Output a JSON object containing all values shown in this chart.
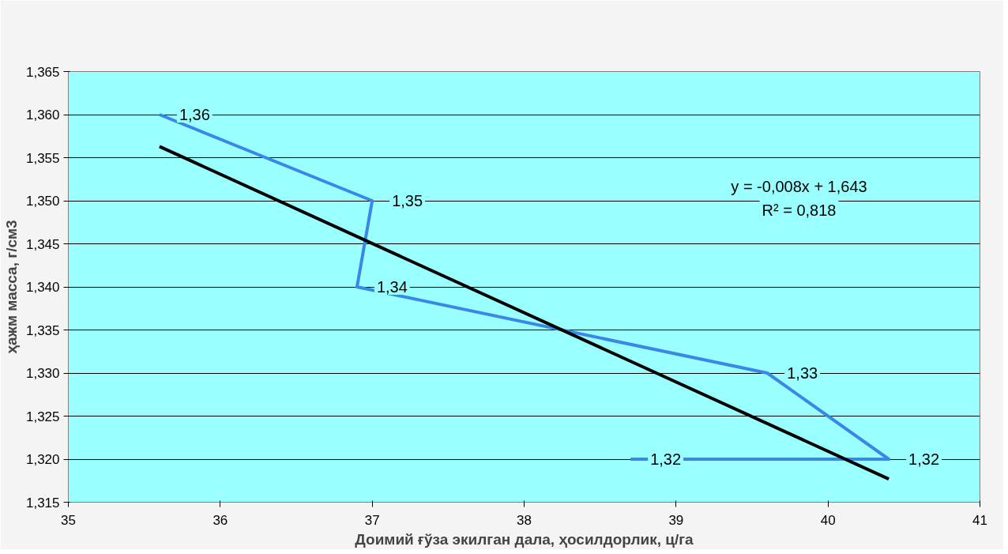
{
  "chart_data": {
    "type": "line",
    "xlabel": "Доимий ғўза экилган дала, ҳосилдорлик, ц/га",
    "ylabel": "ҳажм масса, г/см3",
    "xlim": [
      35,
      41
    ],
    "xticks": [
      35,
      36,
      37,
      38,
      39,
      40,
      41
    ],
    "ylim": [
      1.315,
      1.365
    ],
    "yticks": [
      {
        "value": 1.315,
        "label": "1,315"
      },
      {
        "value": 1.32,
        "label": "1,320"
      },
      {
        "value": 1.325,
        "label": "1,325"
      },
      {
        "value": 1.33,
        "label": "1,330"
      },
      {
        "value": 1.335,
        "label": "1,335"
      },
      {
        "value": 1.34,
        "label": "1,340"
      },
      {
        "value": 1.345,
        "label": "1,345"
      },
      {
        "value": 1.35,
        "label": "1,350"
      },
      {
        "value": 1.355,
        "label": "1,355"
      },
      {
        "value": 1.36,
        "label": "1,360"
      },
      {
        "value": 1.365,
        "label": "1,365"
      }
    ],
    "grid": "y",
    "marker": "none",
    "line_style": "solid",
    "series": [
      {
        "color": "#3a87e8",
        "x": [
          35.6,
          37.0,
          36.9,
          39.6,
          40.4,
          38.7
        ],
        "values": [
          1.36,
          1.35,
          1.34,
          1.33,
          1.32,
          1.32
        ],
        "value_labels": [
          "1,36",
          "1,35",
          "1,34",
          "1,33",
          "1,32",
          "1,32"
        ]
      },
      {
        "color": "#000000",
        "x": [
          35.6,
          40.4
        ],
        "values": [
          1.3563,
          1.3177
        ]
      }
    ],
    "annotations": [
      "y = -0,008x + 1,643",
      "R² = 0,818"
    ]
  }
}
